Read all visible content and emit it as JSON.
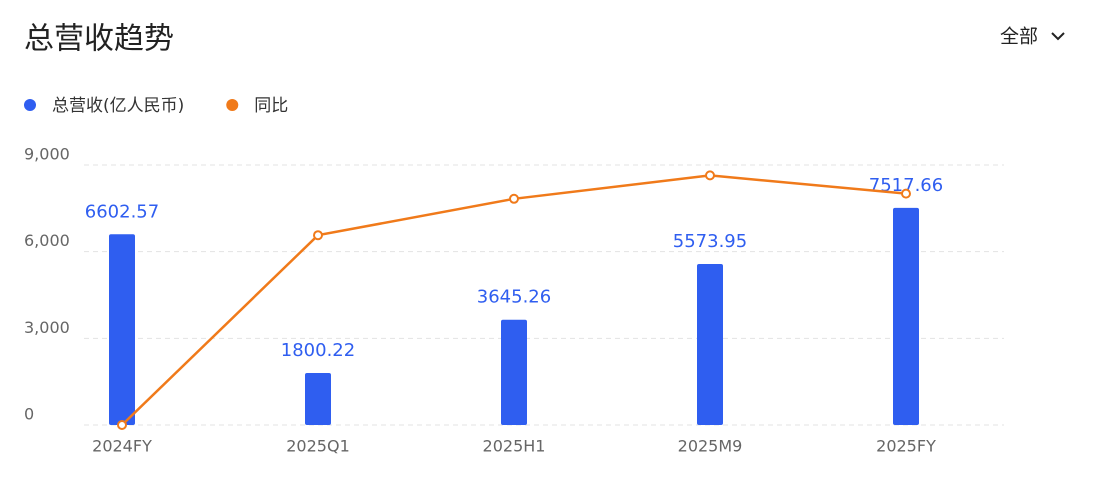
{
  "chart_data": {
    "type": "bar",
    "title": "总营收趋势",
    "filter": "全部",
    "categories": [
      "2024FY",
      "2025Q1",
      "2025H1",
      "2025M9",
      "2025FY"
    ],
    "series": [
      {
        "name": "总营收(亿人民币)",
        "color": "#2f5ef0",
        "type": "bar",
        "values": [
          6602.57,
          1800.22,
          3645.26,
          5573.95,
          7517.66
        ]
      },
      {
        "name": "同比",
        "color": "#f07a1a",
        "type": "line",
        "axis": "y2",
        "values": [
          0,
          73,
          87,
          96,
          89
        ]
      }
    ],
    "ylim": [
      0,
      9000
    ],
    "yticks": [
      0,
      {
        "value": 3000,
        "label": "3,000"
      },
      {
        "value": 6000,
        "label": "6,000"
      },
      {
        "value": 9000,
        "label": "9,000"
      }
    ],
    "y2lim": [
      0,
      100
    ],
    "grid": true
  }
}
